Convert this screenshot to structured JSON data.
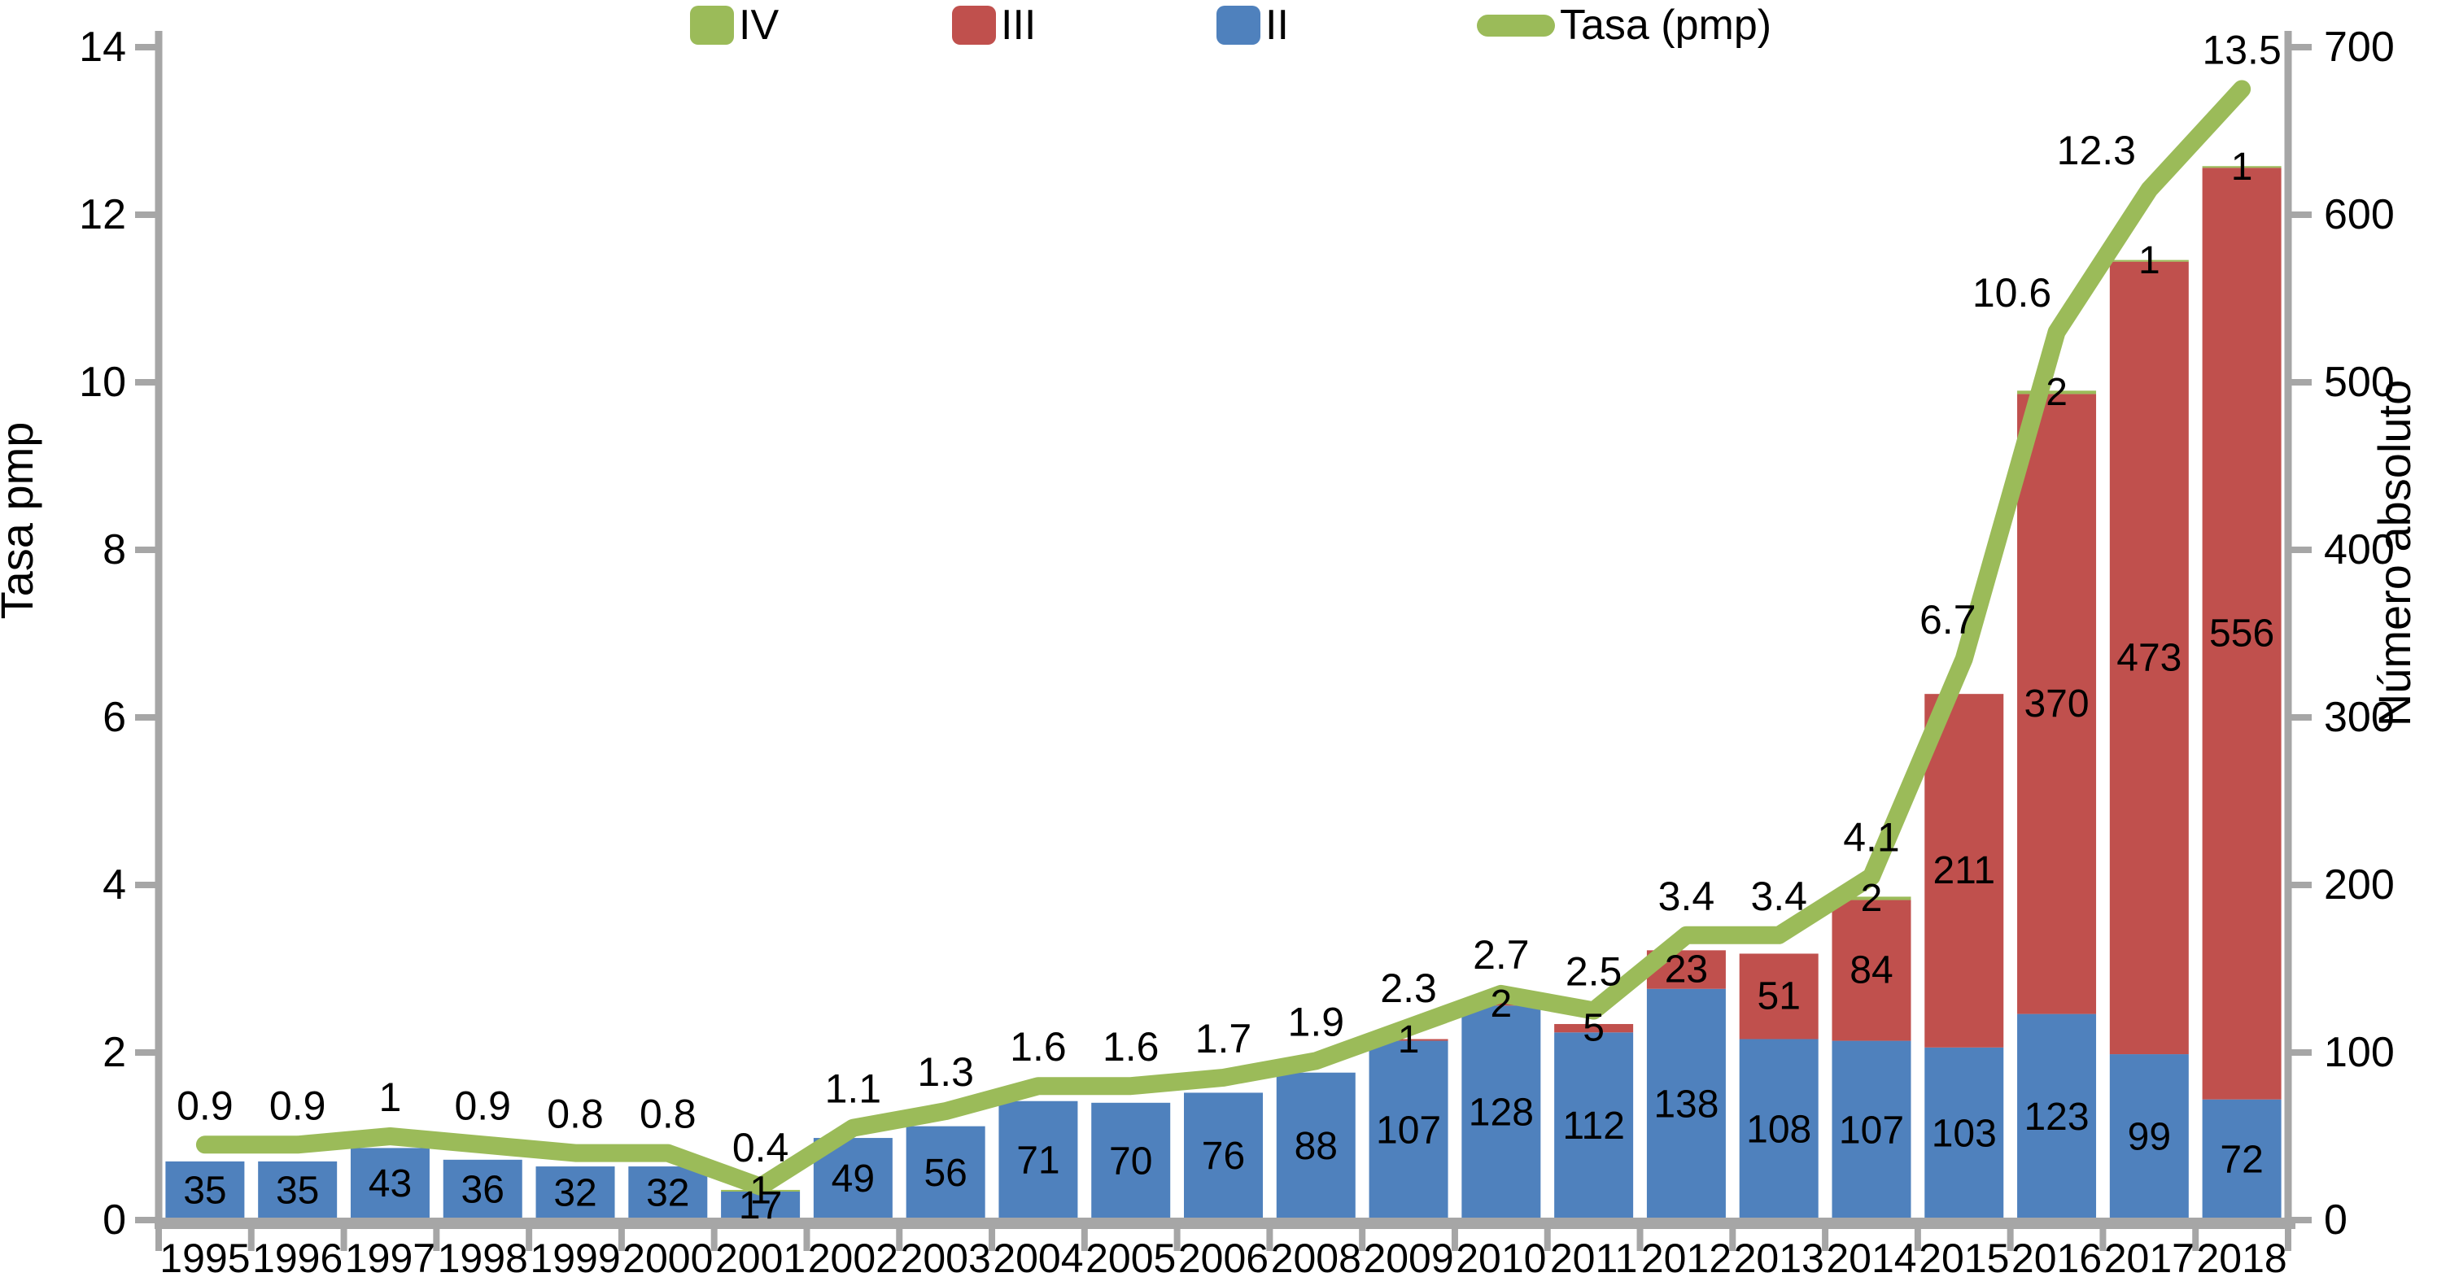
{
  "chart_data": {
    "type": "bar",
    "stacked": true,
    "grid": false,
    "legend_position": "top-center",
    "categories": [
      "1995",
      "1996",
      "1997",
      "1998",
      "1999",
      "2000",
      "2001",
      "2002",
      "2003",
      "2004",
      "2005",
      "2006",
      "2008",
      "2009",
      "2010",
      "2011",
      "2012",
      "2013",
      "2014",
      "2015",
      "2016",
      "2017",
      "2018"
    ],
    "series": [
      {
        "name": "II",
        "color": "#4F81BD",
        "values": [
          35,
          35,
          43,
          36,
          32,
          32,
          17,
          49,
          56,
          71,
          70,
          76,
          88,
          107,
          128,
          112,
          138,
          108,
          107,
          103,
          123,
          99,
          72
        ]
      },
      {
        "name": "III",
        "color": "#C0504D",
        "values": [
          0,
          0,
          0,
          0,
          0,
          0,
          0,
          0,
          0,
          0,
          0,
          0,
          0,
          1,
          2,
          5,
          23,
          51,
          84,
          211,
          370,
          473,
          556
        ]
      },
      {
        "name": "IV",
        "color": "#9BBB59",
        "values": [
          0,
          0,
          0,
          0,
          0,
          0,
          1,
          0,
          0,
          0,
          0,
          0,
          0,
          0,
          0,
          0,
          0,
          0,
          2,
          0,
          2,
          1,
          1
        ]
      }
    ],
    "line": {
      "name": "Tasa (pmp)",
      "color": "#9BBB59",
      "values": [
        0.9,
        0.9,
        1,
        0.9,
        0.8,
        0.8,
        0.4,
        1.1,
        1.3,
        1.6,
        1.6,
        1.7,
        1.9,
        2.3,
        2.7,
        2.5,
        3.4,
        3.4,
        4.1,
        6.7,
        10.6,
        12.3,
        13.5
      ]
    },
    "left_axis": {
      "label": "Tasa pmp",
      "min": 0,
      "max": 14,
      "ticks": [
        0,
        2,
        4,
        6,
        8,
        10,
        12,
        14
      ]
    },
    "right_axis": {
      "label": "Número absoluto",
      "min": 0,
      "max": 700,
      "ticks": [
        0,
        100,
        200,
        300,
        400,
        500,
        600,
        700
      ]
    },
    "legend": [
      {
        "label": "IV",
        "swatch": "square",
        "color": "#9BBB59"
      },
      {
        "label": "III",
        "swatch": "square",
        "color": "#C0504D"
      },
      {
        "label": "II",
        "swatch": "square",
        "color": "#4F81BD"
      },
      {
        "label": "Tasa (pmp)",
        "swatch": "line",
        "color": "#9BBB59"
      }
    ],
    "axis_color": "#A6A6A6"
  }
}
